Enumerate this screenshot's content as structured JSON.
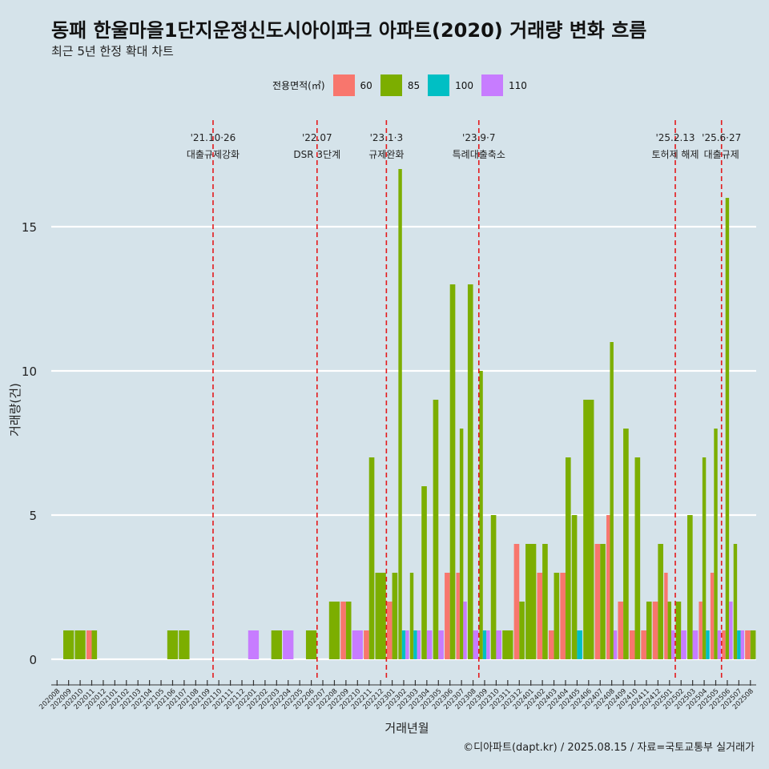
{
  "chart_data": {
    "type": "bar",
    "title": "동패 한울마을1단지운정신도시아이파크 아파트(2020) 거래량 변화 흐름",
    "subtitle": "최근 5년 한정 확대 차트",
    "xlabel": "거래년월",
    "ylabel": "거래량(건)",
    "caption": "©디아파트(dapt.kr) / 2025.08.15 / 자료=국토교통부 실거래가",
    "legend_title": "전용면적(㎡)",
    "legend_position": "top",
    "grid": true,
    "ylim": [
      0,
      17
    ],
    "yticks": [
      0,
      5,
      10,
      15
    ],
    "categories": [
      "202008",
      "202009",
      "202010",
      "202011",
      "202012",
      "202101",
      "202102",
      "202103",
      "202104",
      "202105",
      "202106",
      "202107",
      "202108",
      "202109",
      "202110",
      "202111",
      "202112",
      "202201",
      "202202",
      "202203",
      "202204",
      "202205",
      "202206",
      "202207",
      "202208",
      "202209",
      "202210",
      "202211",
      "202212",
      "202301",
      "202302",
      "202303",
      "202304",
      "202305",
      "202306",
      "202307",
      "202308",
      "202309",
      "202310",
      "202311",
      "202312",
      "202401",
      "202402",
      "202403",
      "202404",
      "202405",
      "202406",
      "202407",
      "202408",
      "202409",
      "202410",
      "202411",
      "202412",
      "202501",
      "202502",
      "202503",
      "202504",
      "202505",
      "202506",
      "202507",
      "202508"
    ],
    "series": [
      {
        "name": "60",
        "color": "#f8766d",
        "values": [
          0,
          0,
          0,
          1,
          0,
          0,
          0,
          0,
          0,
          0,
          0,
          0,
          0,
          0,
          0,
          0,
          0,
          0,
          0,
          0,
          0,
          0,
          0,
          0,
          0,
          2,
          0,
          1,
          0,
          2,
          0,
          0,
          0,
          0,
          3,
          3,
          0,
          0,
          0,
          0,
          4,
          0,
          3,
          1,
          3,
          0,
          0,
          4,
          5,
          2,
          1,
          1,
          2,
          3,
          0,
          0,
          2,
          3,
          1,
          0,
          1
        ]
      },
      {
        "name": "85",
        "color": "#7cae00",
        "values": [
          0,
          1,
          1,
          1,
          0,
          0,
          0,
          0,
          0,
          0,
          1,
          1,
          0,
          0,
          0,
          0,
          0,
          0,
          0,
          1,
          0,
          0,
          1,
          0,
          2,
          2,
          0,
          7,
          3,
          3,
          17,
          3,
          6,
          9,
          13,
          8,
          13,
          10,
          5,
          1,
          2,
          4,
          4,
          3,
          7,
          5,
          9,
          4,
          11,
          8,
          7,
          2,
          4,
          2,
          2,
          5,
          7,
          8,
          16,
          4,
          1
        ]
      },
      {
        "name": "100",
        "color": "#00bfc4",
        "values": [
          0,
          0,
          0,
          0,
          0,
          0,
          0,
          0,
          0,
          0,
          0,
          0,
          0,
          0,
          0,
          0,
          0,
          0,
          0,
          0,
          0,
          0,
          0,
          0,
          0,
          0,
          0,
          0,
          0,
          0,
          1,
          1,
          0,
          0,
          0,
          0,
          0,
          1,
          0,
          0,
          0,
          0,
          0,
          0,
          0,
          1,
          0,
          0,
          0,
          0,
          0,
          0,
          0,
          0,
          0,
          0,
          1,
          0,
          0,
          1,
          0
        ]
      },
      {
        "name": "110",
        "color": "#c77cff",
        "values": [
          0,
          0,
          0,
          0,
          0,
          0,
          0,
          0,
          0,
          0,
          0,
          0,
          0,
          0,
          0,
          0,
          0,
          1,
          0,
          0,
          1,
          0,
          0,
          0,
          0,
          0,
          1,
          0,
          0,
          0,
          1,
          1,
          1,
          1,
          0,
          2,
          1,
          1,
          1,
          0,
          0,
          0,
          0,
          0,
          0,
          0,
          0,
          0,
          1,
          0,
          0,
          0,
          0,
          1,
          1,
          1,
          0,
          1,
          2,
          1,
          0
        ]
      }
    ],
    "events": [
      {
        "month": "202110",
        "date": "'21.10·26",
        "label": "대출규제강화"
      },
      {
        "month": "202207",
        "date": "'22.07",
        "label": "DSR 3단계"
      },
      {
        "month": "202301",
        "date": "'23.1·3",
        "label": "규제완화"
      },
      {
        "month": "202309",
        "date": "'23.9·7",
        "label": "특례대출축소"
      },
      {
        "month": "202502",
        "date": "'25.2.13",
        "label": "토허제 해제"
      },
      {
        "month": "202506",
        "date": "'25.6·27",
        "label": "대출규제"
      }
    ]
  }
}
